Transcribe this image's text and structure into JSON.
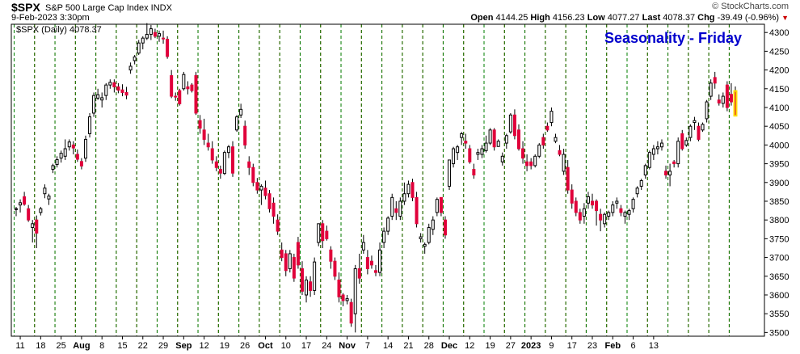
{
  "header": {
    "symbol": "$SPX",
    "name": "S&P 500 Large Cap Index  INDX",
    "datetime": "9-Feb-2023 3:30pm",
    "brand": "© StockCharts.com",
    "open_label": "Open",
    "open": "4144.25",
    "high_label": "High",
    "high": "4156.23",
    "low_label": "Low",
    "low": "4077.27",
    "last_label": "Last",
    "last": "4078.37",
    "chg_label": "Chg",
    "chg": "-39.49 (-0.96%)"
  },
  "chart_data": {
    "type": "candlestick",
    "title": "Seasonality - Friday",
    "legend": "$SPX (Daily) 4078.37",
    "y_ticks": [
      3500,
      3550,
      3600,
      3650,
      3700,
      3750,
      3800,
      3850,
      3900,
      3950,
      4000,
      4050,
      4100,
      4150,
      4200,
      4250,
      4300
    ],
    "ylim": [
      3490,
      4322
    ],
    "x_labels": [
      "11",
      "18",
      "25",
      "Aug",
      "8",
      "15",
      "22",
      "29",
      "Sep",
      "12",
      "19",
      "26",
      "Oct",
      "10",
      "17",
      "24",
      "Nov",
      "7",
      "14",
      "21",
      "28",
      "Dec",
      "12",
      "19",
      "27",
      "2023",
      "9",
      "17",
      "23",
      "Feb",
      "6",
      "13"
    ],
    "bold_labels": [
      "Aug",
      "Sep",
      "Oct",
      "Nov",
      "Dec",
      "2023",
      "Feb"
    ],
    "colors": {
      "up_outline": "#000000",
      "down_fill": "#e0003a",
      "friday_line": "#e00000",
      "monday_line": "#008000",
      "title": "#0000cc",
      "last_bar_highlight": "#ffe000"
    },
    "candles": [
      [
        3828,
        3835,
        3810,
        3830
      ],
      [
        3840,
        3855,
        3820,
        3846
      ],
      [
        3862,
        3875,
        3838,
        3842
      ],
      [
        3830,
        3840,
        3795,
        3800
      ],
      [
        3780,
        3800,
        3740,
        3790
      ],
      [
        3800,
        3812,
        3725,
        3765
      ],
      [
        3820,
        3835,
        3812,
        3830
      ],
      [
        3870,
        3895,
        3858,
        3885
      ],
      [
        3856,
        3870,
        3840,
        3864
      ],
      [
        3935,
        3950,
        3925,
        3945
      ],
      [
        3948,
        3970,
        3940,
        3961
      ],
      [
        3965,
        3985,
        3953,
        3978
      ],
      [
        3970,
        4015,
        3960,
        3990
      ],
      [
        3995,
        4015,
        3985,
        4008
      ],
      [
        4000,
        4010,
        3975,
        3992
      ],
      [
        3975,
        3988,
        3955,
        3962
      ],
      [
        3956,
        3965,
        3935,
        3944
      ],
      [
        3965,
        4025,
        3955,
        4015
      ],
      [
        4030,
        4085,
        4020,
        4075
      ],
      [
        4085,
        4140,
        4075,
        4132
      ],
      [
        4125,
        4150,
        4120,
        4134
      ],
      [
        4120,
        4140,
        4100,
        4126
      ],
      [
        4132,
        4165,
        4120,
        4160
      ],
      [
        4160,
        4175,
        4150,
        4167
      ],
      [
        4166,
        4175,
        4140,
        4155
      ],
      [
        4155,
        4165,
        4138,
        4146
      ],
      [
        4147,
        4162,
        4130,
        4140
      ],
      [
        4140,
        4155,
        4122,
        4133
      ],
      [
        4200,
        4220,
        4190,
        4210
      ],
      [
        4225,
        4240,
        4215,
        4235
      ],
      [
        4245,
        4280,
        4240,
        4272
      ],
      [
        4272,
        4290,
        4255,
        4285
      ],
      [
        4285,
        4325,
        4280,
        4295
      ],
      [
        4295,
        4320,
        4280,
        4310
      ],
      [
        4300,
        4310,
        4285,
        4290
      ],
      [
        4290,
        4305,
        4275,
        4297
      ],
      [
        4285,
        4305,
        4270,
        4283
      ],
      [
        4282,
        4290,
        4230,
        4236
      ],
      [
        4185,
        4200,
        4125,
        4130
      ],
      [
        4130,
        4140,
        4118,
        4128
      ],
      [
        4145,
        4150,
        4105,
        4110
      ],
      [
        4150,
        4195,
        4145,
        4188
      ],
      [
        4155,
        4170,
        4135,
        4150
      ],
      [
        4160,
        4165,
        4140,
        4145
      ],
      [
        4185,
        4195,
        4080,
        4085
      ],
      [
        4065,
        4080,
        4030,
        4045
      ],
      [
        4040,
        4070,
        4000,
        4015
      ],
      [
        4005,
        4030,
        3985,
        3995
      ],
      [
        3990,
        4010,
        3950,
        3960
      ],
      [
        3955,
        3970,
        3930,
        3940
      ],
      [
        3935,
        3945,
        3910,
        3925
      ],
      [
        3924,
        3985,
        3920,
        3980
      ],
      [
        3980,
        4000,
        3965,
        3995
      ],
      [
        3995,
        4010,
        3915,
        3925
      ],
      [
        4040,
        4080,
        4035,
        4075
      ],
      [
        4080,
        4110,
        4072,
        4095
      ],
      [
        4050,
        4065,
        3990,
        4000
      ],
      [
        3955,
        3970,
        3920,
        3940
      ],
      [
        3940,
        3950,
        3890,
        3900
      ],
      [
        3900,
        3912,
        3870,
        3880
      ],
      [
        3880,
        3895,
        3840,
        3890
      ],
      [
        3885,
        3905,
        3855,
        3865
      ],
      [
        3870,
        3880,
        3820,
        3830
      ],
      [
        3845,
        3860,
        3790,
        3810
      ],
      [
        3800,
        3815,
        3760,
        3770
      ],
      [
        3720,
        3740,
        3690,
        3700
      ],
      [
        3710,
        3720,
        3650,
        3665
      ],
      [
        3670,
        3720,
        3660,
        3710
      ],
      [
        3700,
        3710,
        3635,
        3645
      ],
      [
        3740,
        3755,
        3670,
        3680
      ],
      [
        3670,
        3690,
        3600,
        3610
      ],
      [
        3600,
        3650,
        3580,
        3640
      ],
      [
        3635,
        3650,
        3595,
        3612
      ],
      [
        3612,
        3700,
        3600,
        3688
      ],
      [
        3740,
        3790,
        3730,
        3790
      ],
      [
        3790,
        3800,
        3725,
        3745
      ],
      [
        3770,
        3785,
        3745,
        3750
      ],
      [
        3720,
        3730,
        3670,
        3690
      ],
      [
        3690,
        3700,
        3640,
        3650
      ],
      [
        3640,
        3660,
        3580,
        3595
      ],
      [
        3600,
        3605,
        3570,
        3585
      ],
      [
        3585,
        3600,
        3575,
        3590
      ],
      [
        3580,
        3590,
        3515,
        3525
      ],
      [
        3550,
        3680,
        3500,
        3670
      ],
      [
        3670,
        3710,
        3630,
        3645
      ],
      [
        3720,
        3760,
        3710,
        3740
      ],
      [
        3700,
        3720,
        3655,
        3670
      ],
      [
        3690,
        3705,
        3670,
        3680
      ],
      [
        3665,
        3680,
        3650,
        3660
      ],
      [
        3660,
        3740,
        3650,
        3720
      ],
      [
        3740,
        3780,
        3725,
        3770
      ],
      [
        3770,
        3810,
        3760,
        3805
      ],
      [
        3810,
        3870,
        3800,
        3860
      ],
      [
        3830,
        3850,
        3800,
        3820
      ],
      [
        3810,
        3860,
        3800,
        3850
      ],
      [
        3850,
        3900,
        3840,
        3870
      ],
      [
        3870,
        3905,
        3860,
        3895
      ],
      [
        3900,
        3910,
        3850,
        3860
      ],
      [
        3860,
        3875,
        3780,
        3790
      ],
      [
        3750,
        3765,
        3740,
        3755
      ],
      [
        3730,
        3740,
        3710,
        3735
      ],
      [
        3740,
        3790,
        3735,
        3780
      ],
      [
        3775,
        3810,
        3760,
        3800
      ],
      [
        3820,
        3860,
        3810,
        3855
      ],
      [
        3860,
        3860,
        3810,
        3820
      ],
      [
        3800,
        3810,
        3750,
        3760
      ],
      [
        3890,
        3960,
        3880,
        3960
      ],
      [
        3950,
        3995,
        3940,
        3990
      ],
      [
        3980,
        4000,
        3960,
        3995
      ],
      [
        4020,
        4035,
        4000,
        4030
      ],
      [
        4010,
        4030,
        3990,
        4005
      ],
      [
        3990,
        4000,
        3950,
        3955
      ],
      [
        3935,
        3950,
        3910,
        3920
      ],
      [
        3975,
        3990,
        3960,
        3980
      ],
      [
        3975,
        4000,
        3965,
        3990
      ],
      [
        3985,
        4025,
        3980,
        4005
      ],
      [
        4005,
        4045,
        4000,
        4040
      ],
      [
        4040,
        4045,
        3985,
        3995
      ],
      [
        3996,
        4015,
        3995,
        4010
      ],
      [
        3955,
        3980,
        3945,
        3970
      ],
      [
        4005,
        4030,
        3990,
        4025
      ],
      [
        4035,
        4085,
        4030,
        4080
      ],
      [
        4080,
        4095,
        4015,
        4025
      ],
      [
        4040,
        4055,
        3985,
        3990
      ],
      [
        3990,
        4010,
        3950,
        3965
      ],
      [
        3955,
        3975,
        3930,
        3945
      ],
      [
        3955,
        3965,
        3935,
        3945
      ],
      [
        3945,
        3975,
        3940,
        3970
      ],
      [
        3970,
        4005,
        3965,
        4000
      ],
      [
        4020,
        4030,
        3990,
        4000
      ],
      [
        4050,
        4060,
        4035,
        4040
      ],
      [
        4060,
        4100,
        4050,
        4090
      ],
      [
        4010,
        4030,
        4005,
        4020
      ],
      [
        3985,
        4000,
        3970,
        3975
      ],
      [
        3930,
        3990,
        3920,
        3975
      ],
      [
        3940,
        3960,
        3870,
        3880
      ],
      [
        3880,
        3895,
        3830,
        3845
      ],
      [
        3850,
        3860,
        3810,
        3820
      ],
      [
        3820,
        3830,
        3790,
        3800
      ],
      [
        3810,
        3845,
        3790,
        3830
      ],
      [
        3845,
        3875,
        3830,
        3862
      ],
      [
        3850,
        3870,
        3830,
        3840
      ],
      [
        3850,
        3855,
        3785,
        3825
      ],
      [
        3815,
        3830,
        3770,
        3800
      ],
      [
        3790,
        3820,
        3780,
        3815
      ],
      [
        3810,
        3825,
        3800,
        3820
      ],
      [
        3820,
        3850,
        3810,
        3840
      ],
      [
        3845,
        3860,
        3830,
        3850
      ],
      [
        3830,
        3840,
        3810,
        3820
      ],
      [
        3810,
        3825,
        3790,
        3820
      ],
      [
        3815,
        3830,
        3800,
        3825
      ],
      [
        3830,
        3860,
        3820,
        3855
      ],
      [
        3870,
        3890,
        3860,
        3885
      ],
      [
        3890,
        3910,
        3880,
        3905
      ],
      [
        3920,
        3950,
        3910,
        3945
      ],
      [
        3940,
        3985,
        3935,
        3980
      ],
      [
        3975,
        4000,
        3960,
        3990
      ],
      [
        3990,
        4010,
        3975,
        3995
      ],
      [
        3995,
        4015,
        3985,
        4005
      ],
      [
        3930,
        3945,
        3910,
        3920
      ],
      [
        3920,
        3950,
        3890,
        3930
      ],
      [
        3955,
        3960,
        3940,
        3950
      ],
      [
        3950,
        4020,
        3940,
        4010
      ],
      [
        4030,
        4040,
        3985,
        3990
      ],
      [
        4000,
        4020,
        3995,
        4012
      ],
      [
        4020,
        4055,
        4010,
        4050
      ],
      [
        4060,
        4075,
        4040,
        4065
      ],
      [
        4050,
        4060,
        4010,
        4015
      ],
      [
        4040,
        4060,
        4035,
        4055
      ],
      [
        4070,
        4120,
        4060,
        4115
      ],
      [
        4130,
        4175,
        4120,
        4165
      ],
      [
        4180,
        4195,
        4150,
        4165
      ],
      [
        4120,
        4135,
        4105,
        4112
      ],
      [
        4111,
        4140,
        4100,
        4130
      ],
      [
        4160,
        4170,
        4090,
        4100
      ],
      [
        4135,
        4165,
        4105,
        4115
      ],
      [
        4144,
        4156,
        4077,
        4078
      ]
    ]
  }
}
